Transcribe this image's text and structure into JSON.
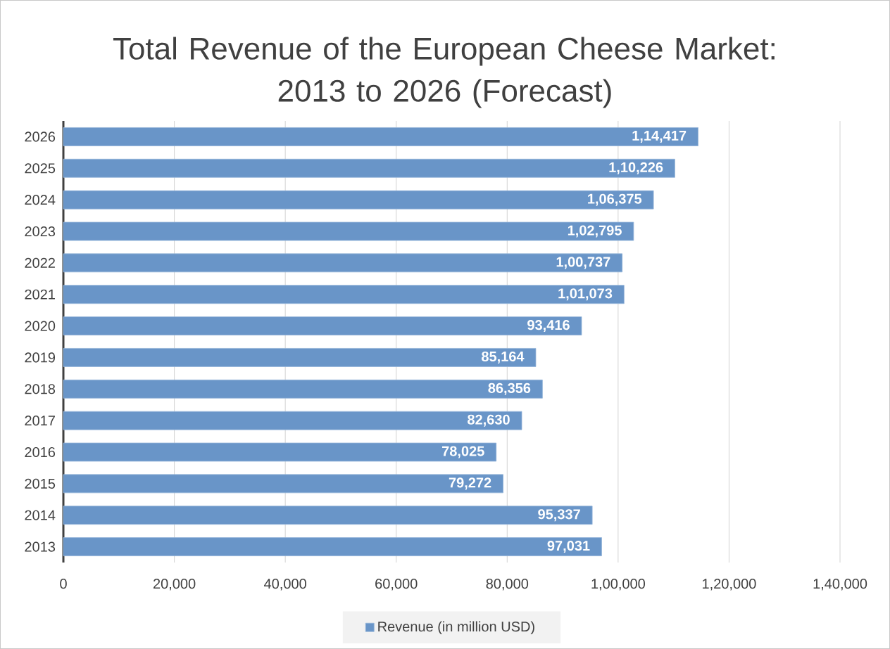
{
  "chart_data": {
    "type": "bar",
    "orientation": "horizontal",
    "title": "Total Revenue of the European Cheese Market:\n2013 to 2026 (Forecast)",
    "categories": [
      "2026",
      "2025",
      "2024",
      "2023",
      "2022",
      "2021",
      "2020",
      "2019",
      "2018",
      "2017",
      "2016",
      "2015",
      "2014",
      "2013"
    ],
    "series": [
      {
        "name": "Revenue (in million USD)",
        "color": "#6995c8",
        "values": [
          114417,
          110226,
          106375,
          102795,
          100737,
          101073,
          93416,
          85164,
          86356,
          82630,
          78025,
          79272,
          95337,
          97031
        ],
        "value_labels": [
          "1,14,417",
          "1,10,226",
          "1,06,375",
          "1,02,795",
          "1,00,737",
          "1,01,073",
          "93,416",
          "85,164",
          "86,356",
          "82,630",
          "78,025",
          "79,272",
          "95,337",
          "97,031"
        ]
      }
    ],
    "xlim": [
      0,
      140000
    ],
    "xticks": [
      0,
      {
        "value": 20000,
        "label": "20,000"
      },
      {
        "value": 40000,
        "label": "40,000"
      },
      {
        "value": 60000,
        "label": "60,000"
      },
      {
        "value": 80000,
        "label": "80,000"
      },
      {
        "value": 100000,
        "label": "1,00,000"
      },
      {
        "value": 120000,
        "label": "1,20,000"
      },
      {
        "value": 140000,
        "label": "1,40,000"
      }
    ],
    "grid": "x",
    "legend": "bottom"
  }
}
